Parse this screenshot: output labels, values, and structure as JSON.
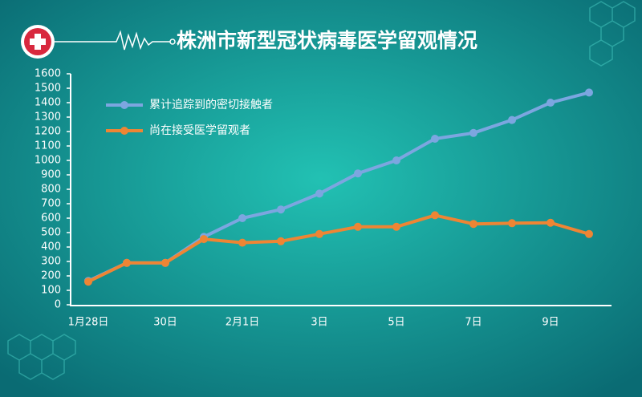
{
  "chart_data": {
    "type": "line",
    "title": "株洲市新型冠状病毒医学留观情况",
    "categories": [
      "1月28日",
      null,
      "30日",
      null,
      "2月1日",
      null,
      "3日",
      null,
      "5日",
      null,
      "7日",
      null,
      "9日",
      null
    ],
    "series": [
      {
        "name": "累计追踪到的密切接触者",
        "color": "#7ca6e0",
        "values": [
          165,
          290,
          290,
          470,
          600,
          660,
          770,
          910,
          1000,
          1150,
          1190,
          1280,
          1400,
          1470
        ]
      },
      {
        "name": "尚在接受医学留观者",
        "color": "#ee8534",
        "values": [
          160,
          290,
          290,
          455,
          430,
          440,
          490,
          540,
          540,
          620,
          560,
          565,
          568,
          490
        ]
      }
    ],
    "ylim": [
      0,
      1600
    ],
    "yticks": [
      0,
      100,
      200,
      300,
      400,
      500,
      600,
      700,
      800,
      900,
      1000,
      1100,
      1200,
      1300,
      1400,
      1500,
      1600
    ],
    "legend": "upper-left"
  }
}
